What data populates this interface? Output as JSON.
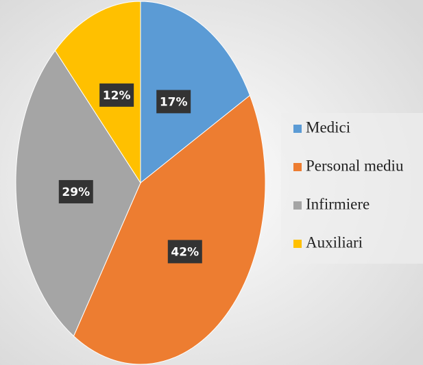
{
  "chart_data": {
    "type": "pie",
    "categories": [
      "Medici",
      "Personal mediu",
      "Infirmiere",
      "Auxiliari"
    ],
    "values": [
      17,
      42,
      29,
      12
    ],
    "value_labels": [
      "17%",
      "42%",
      "29%",
      "12%"
    ],
    "colors": [
      "#5b9bd5",
      "#ed7d31",
      "#a5a5a5",
      "#ffc000"
    ],
    "legend": "right"
  }
}
